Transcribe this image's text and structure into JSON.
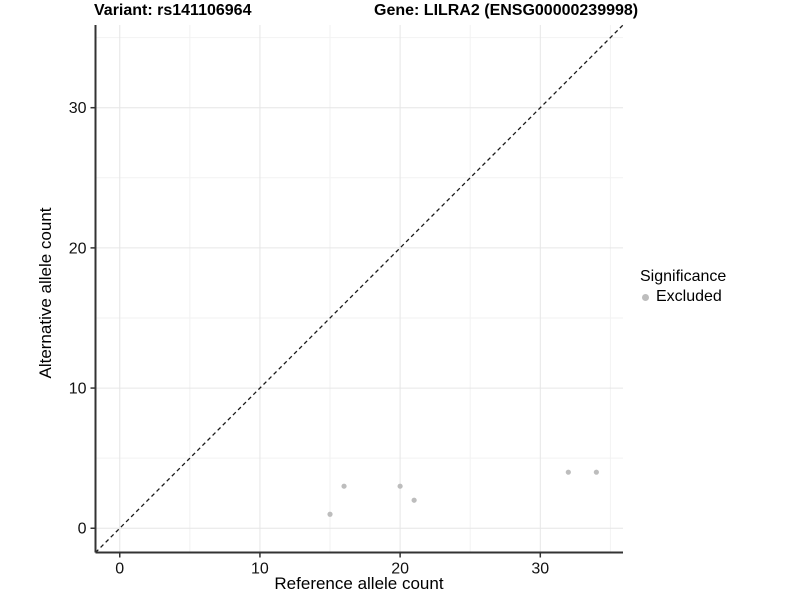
{
  "chart_data": {
    "type": "scatter",
    "title_left": "Variant: rs141106964",
    "title_right": "Gene: LILRA2 (ENSG00000239998)",
    "xlabel": "Reference allele count",
    "ylabel": "Alternative allele count",
    "xlim": [
      -1.73,
      35.9
    ],
    "ylim": [
      -1.73,
      35.9
    ],
    "x_major_ticks": [
      0,
      10,
      20,
      30
    ],
    "y_major_ticks": [
      0,
      10,
      20,
      30
    ],
    "x_minor_ticks": [
      5,
      15,
      25,
      35
    ],
    "y_minor_ticks": [
      5,
      15,
      25,
      35
    ],
    "grid": true,
    "identity_line": {
      "style": "dashed",
      "color": "#1a1a1a",
      "from": -1.73,
      "to": 35.9
    },
    "series": [
      {
        "name": "Excluded",
        "color": "#bdbdbd",
        "points": [
          [
            15,
            1
          ],
          [
            16,
            3
          ],
          [
            20,
            3
          ],
          [
            21,
            2
          ],
          [
            32,
            4
          ],
          [
            34,
            4
          ]
        ]
      }
    ],
    "legend": {
      "position": "right",
      "title": "Significance",
      "items": [
        {
          "label": "Excluded",
          "color": "#bdbdbd"
        }
      ]
    },
    "colors": {
      "point": "#bdbdbd",
      "grid_major": "#e6e6e6",
      "grid_minor": "#f2f2f2",
      "axis_line": "#333333",
      "tick_mark": "#333333",
      "tick_label": "#111111",
      "background": "#ffffff"
    }
  }
}
